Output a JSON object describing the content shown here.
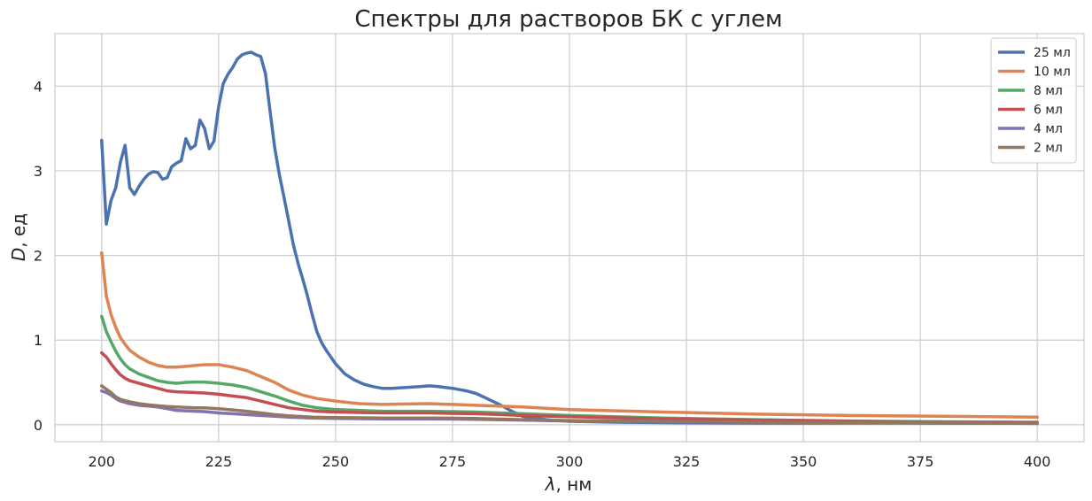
{
  "chart_data": {
    "type": "line",
    "title": "Спектры для растворов БК с углем",
    "xlabel_symbol": "λ",
    "xlabel_unit": ", нм",
    "ylabel_symbol": "D",
    "ylabel_unit": ", ед",
    "xlim": [
      190,
      410
    ],
    "ylim": [
      -0.2,
      4.62
    ],
    "xticks": [
      200,
      225,
      250,
      275,
      300,
      325,
      350,
      375,
      400
    ],
    "yticks": [
      0,
      1,
      2,
      3,
      4
    ],
    "grid": true,
    "legend": "top-right",
    "series": [
      {
        "name": "25 мл",
        "color": "#4C72B0",
        "x": [
          200,
          201,
          202,
          203,
          204,
          205,
          206,
          207,
          208,
          209,
          210,
          211,
          212,
          213,
          214,
          215,
          216,
          217,
          218,
          219,
          220,
          221,
          222,
          223,
          224,
          225,
          226,
          227,
          228,
          229,
          230,
          231,
          232,
          233,
          234,
          235,
          236,
          237,
          238,
          239,
          240,
          241,
          242,
          243,
          244,
          245,
          246,
          247,
          248,
          249,
          250,
          252,
          254,
          256,
          258,
          260,
          262,
          265,
          268,
          270,
          272,
          275,
          278,
          280,
          282,
          285,
          288,
          290,
          295,
          300,
          310,
          320,
          340,
          360,
          380,
          400
        ],
        "y": [
          3.36,
          2.37,
          2.65,
          2.8,
          3.1,
          3.3,
          2.8,
          2.72,
          2.82,
          2.9,
          2.96,
          2.99,
          2.98,
          2.9,
          2.92,
          3.05,
          3.09,
          3.12,
          3.38,
          3.26,
          3.3,
          3.6,
          3.5,
          3.26,
          3.35,
          3.76,
          4.03,
          4.14,
          4.22,
          4.32,
          4.37,
          4.39,
          4.4,
          4.37,
          4.35,
          4.15,
          3.7,
          3.27,
          2.95,
          2.68,
          2.4,
          2.12,
          1.9,
          1.72,
          1.52,
          1.3,
          1.1,
          0.97,
          0.88,
          0.8,
          0.72,
          0.6,
          0.53,
          0.48,
          0.45,
          0.43,
          0.43,
          0.44,
          0.45,
          0.46,
          0.45,
          0.43,
          0.4,
          0.37,
          0.32,
          0.24,
          0.15,
          0.1,
          0.06,
          0.04,
          0.03,
          0.025,
          0.02,
          0.02,
          0.02,
          0.02
        ]
      },
      {
        "name": "10 мл",
        "color": "#DD8452",
        "x": [
          200,
          201,
          202,
          203,
          204,
          205,
          206,
          208,
          210,
          212,
          214,
          216,
          218,
          220,
          222,
          225,
          228,
          231,
          234,
          237,
          240,
          243,
          246,
          250,
          255,
          260,
          265,
          270,
          275,
          280,
          290,
          300,
          320,
          340,
          360,
          380,
          400
        ],
        "y": [
          2.03,
          1.52,
          1.3,
          1.15,
          1.03,
          0.95,
          0.88,
          0.8,
          0.74,
          0.7,
          0.68,
          0.68,
          0.69,
          0.7,
          0.71,
          0.71,
          0.68,
          0.64,
          0.57,
          0.5,
          0.41,
          0.35,
          0.31,
          0.28,
          0.25,
          0.24,
          0.245,
          0.25,
          0.24,
          0.23,
          0.21,
          0.18,
          0.15,
          0.125,
          0.11,
          0.1,
          0.09
        ]
      },
      {
        "name": "8 мл",
        "color": "#55A868",
        "x": [
          200,
          201,
          202,
          203,
          204,
          205,
          206,
          208,
          210,
          212,
          214,
          216,
          218,
          220,
          222,
          225,
          228,
          231,
          234,
          237,
          240,
          243,
          246,
          250,
          255,
          260,
          265,
          270,
          275,
          280,
          290,
          300,
          320,
          340,
          360,
          380,
          400
        ],
        "y": [
          1.28,
          1.1,
          0.98,
          0.87,
          0.78,
          0.71,
          0.66,
          0.6,
          0.56,
          0.52,
          0.5,
          0.49,
          0.5,
          0.505,
          0.505,
          0.49,
          0.47,
          0.44,
          0.39,
          0.34,
          0.28,
          0.23,
          0.2,
          0.18,
          0.17,
          0.16,
          0.16,
          0.16,
          0.155,
          0.15,
          0.13,
          0.11,
          0.08,
          0.06,
          0.045,
          0.035,
          0.03
        ]
      },
      {
        "name": "6 мл",
        "color": "#C44E52",
        "x": [
          200,
          201,
          202,
          203,
          204,
          205,
          206,
          208,
          210,
          212,
          214,
          216,
          218,
          220,
          222,
          225,
          228,
          231,
          234,
          237,
          240,
          243,
          246,
          250,
          255,
          260,
          265,
          270,
          275,
          280,
          290,
          300,
          320,
          340,
          360,
          380,
          400
        ],
        "y": [
          0.85,
          0.8,
          0.72,
          0.65,
          0.59,
          0.55,
          0.52,
          0.49,
          0.46,
          0.43,
          0.4,
          0.39,
          0.385,
          0.38,
          0.375,
          0.36,
          0.34,
          0.32,
          0.28,
          0.24,
          0.2,
          0.18,
          0.16,
          0.15,
          0.145,
          0.14,
          0.14,
          0.14,
          0.135,
          0.13,
          0.11,
          0.095,
          0.07,
          0.055,
          0.04,
          0.03,
          0.025
        ]
      },
      {
        "name": "4 мл",
        "color": "#8172B3",
        "x": [
          200,
          201,
          202,
          203,
          204,
          206,
          208,
          210,
          212,
          214,
          216,
          218,
          220,
          222,
          225,
          228,
          231,
          234,
          237,
          240,
          245,
          250,
          260,
          270,
          280,
          290,
          300,
          320,
          340,
          360,
          380,
          400
        ],
        "y": [
          0.4,
          0.38,
          0.35,
          0.31,
          0.28,
          0.25,
          0.23,
          0.22,
          0.21,
          0.19,
          0.17,
          0.165,
          0.16,
          0.155,
          0.14,
          0.13,
          0.12,
          0.11,
          0.1,
          0.09,
          0.08,
          0.075,
          0.07,
          0.07,
          0.065,
          0.055,
          0.045,
          0.035,
          0.03,
          0.025,
          0.02,
          0.015
        ]
      },
      {
        "name": "2 мл",
        "color": "#937860",
        "x": [
          200,
          201,
          202,
          203,
          204,
          206,
          208,
          210,
          212,
          214,
          216,
          218,
          220,
          222,
          225,
          228,
          231,
          234,
          237,
          240,
          245,
          250,
          260,
          270,
          280,
          290,
          300,
          320,
          340,
          360,
          380,
          400
        ],
        "y": [
          0.46,
          0.42,
          0.38,
          0.33,
          0.3,
          0.27,
          0.25,
          0.235,
          0.225,
          0.215,
          0.21,
          0.205,
          0.2,
          0.2,
          0.19,
          0.175,
          0.16,
          0.14,
          0.12,
          0.105,
          0.09,
          0.085,
          0.08,
          0.08,
          0.075,
          0.06,
          0.05,
          0.04,
          0.03,
          0.025,
          0.02,
          0.015
        ]
      }
    ]
  }
}
